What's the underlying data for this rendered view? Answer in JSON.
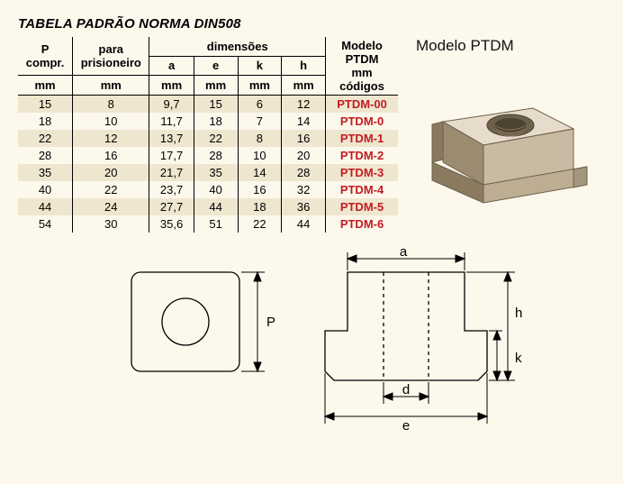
{
  "title": "TABELA PADRÃO NORMA DIN508",
  "product_label": "Modelo PTDM",
  "headers": {
    "p1": "P",
    "p2": "compr.",
    "pr1": "para",
    "pr2": "prisioneiro",
    "dim": "dimensões",
    "a": "a",
    "e": "e",
    "k": "k",
    "h": "h",
    "m1": "Modelo",
    "m2": "PTDM",
    "m3": "mm",
    "m4": "códigos",
    "mm": "mm"
  },
  "dim_labels": {
    "a": "a",
    "e": "e",
    "d": "d",
    "h": "h",
    "k": "k",
    "P": "P"
  },
  "colors": {
    "background": "#fcf8ec",
    "row_shade": "#efe6cf",
    "code_text": "#c11c22",
    "line": "#000000",
    "nut_light": "#e7dccb",
    "nut_mid": "#c9bba3",
    "nut_dark": "#9b8b70",
    "nut_darker": "#6e614c"
  },
  "rows": [
    {
      "P": "15",
      "pr": "8",
      "a": "9,7",
      "e": "15",
      "k": "6",
      "h": "12",
      "code": "PTDM-00"
    },
    {
      "P": "18",
      "pr": "10",
      "a": "11,7",
      "e": "18",
      "k": "7",
      "h": "14",
      "code": "PTDM-0"
    },
    {
      "P": "22",
      "pr": "12",
      "a": "13,7",
      "e": "22",
      "k": "8",
      "h": "16",
      "code": "PTDM-1"
    },
    {
      "P": "28",
      "pr": "16",
      "a": "17,7",
      "e": "28",
      "k": "10",
      "h": "20",
      "code": "PTDM-2"
    },
    {
      "P": "35",
      "pr": "20",
      "a": "21,7",
      "e": "35",
      "k": "14",
      "h": "28",
      "code": "PTDM-3"
    },
    {
      "P": "40",
      "pr": "22",
      "a": "23,7",
      "e": "40",
      "k": "16",
      "h": "32",
      "code": "PTDM-4"
    },
    {
      "P": "44",
      "pr": "24",
      "a": "27,7",
      "e": "44",
      "k": "18",
      "h": "36",
      "code": "PTDM-5"
    },
    {
      "P": "54",
      "pr": "30",
      "a": "35,6",
      "e": "51",
      "k": "22",
      "h": "44",
      "code": "PTDM-6"
    }
  ]
}
